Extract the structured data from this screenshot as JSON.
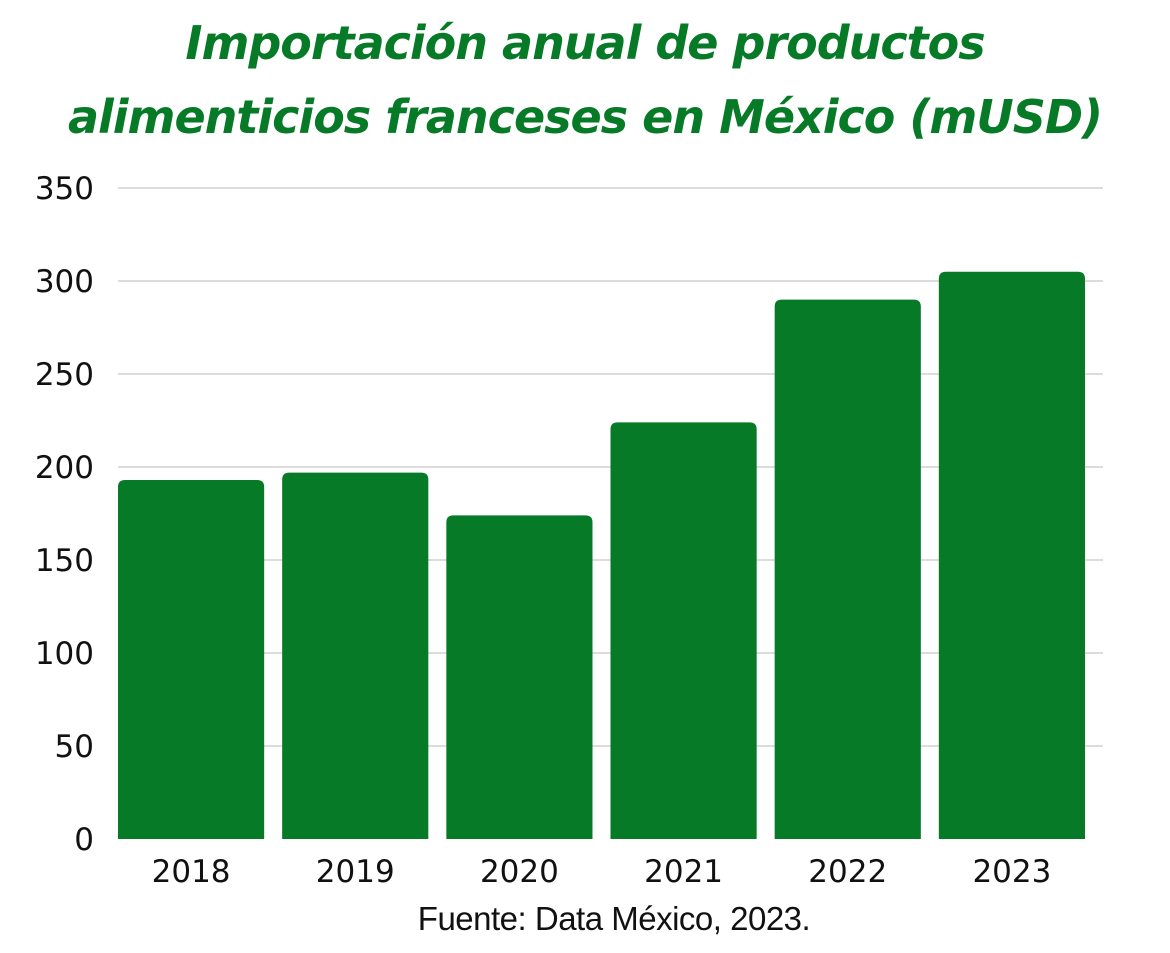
{
  "chart_data": {
    "type": "bar",
    "title_line1": "Importación anual de productos",
    "title_line2": "alimenticios franceses en México (mUSD)",
    "xlabel": "",
    "ylabel": "",
    "categories": [
      "2018",
      "2019",
      "2020",
      "2021",
      "2022",
      "2023"
    ],
    "values": [
      193,
      197,
      174,
      224,
      290,
      305
    ],
    "ylim": [
      0,
      350
    ],
    "yticks": [
      "0",
      "50",
      "100",
      "150",
      "200",
      "250",
      "300",
      "350"
    ],
    "grid": true,
    "bar_color": "#077a27",
    "source": "Fuente: Data México, 2023."
  }
}
